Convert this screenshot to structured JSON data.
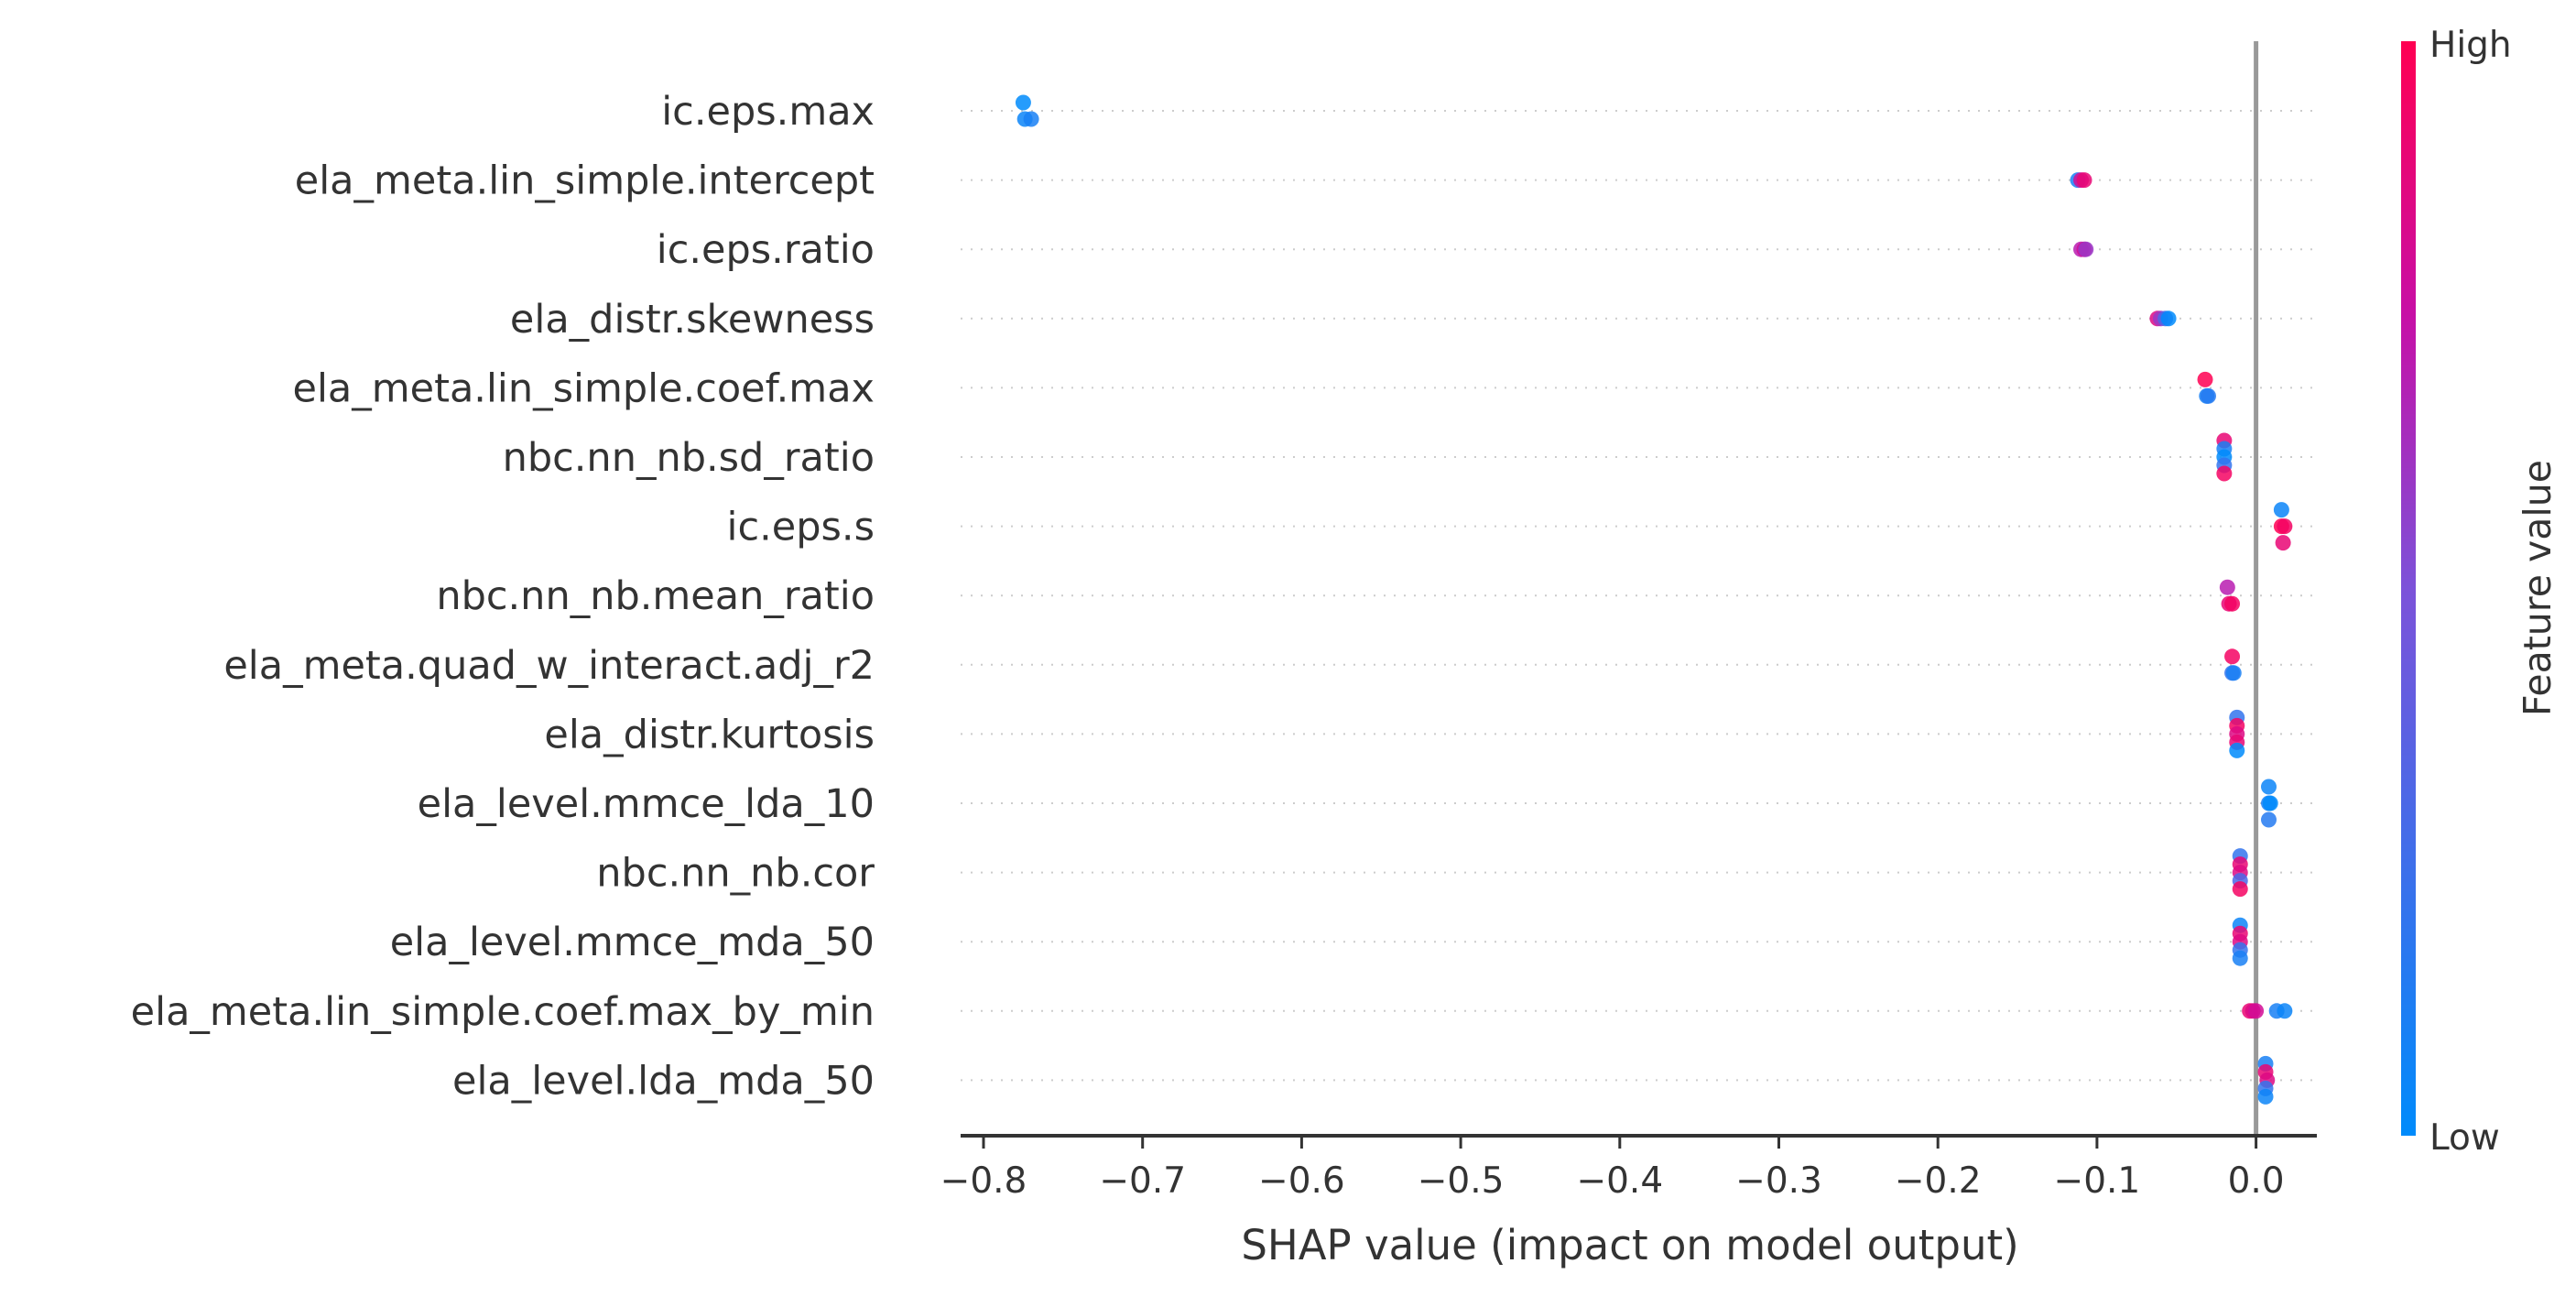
{
  "chart_data": {
    "type": "scatter",
    "subtype": "shap-beeswarm",
    "title": "",
    "xlabel": "SHAP value (impact on model output)",
    "ylabel": "",
    "xlim": [
      -0.82,
      0.06
    ],
    "xticks": [
      -0.8,
      -0.7,
      -0.6,
      -0.5,
      -0.4,
      -0.3,
      -0.2,
      -0.1,
      0.0
    ],
    "xtick_labels": [
      "−0.8",
      "−0.7",
      "−0.6",
      "−0.5",
      "−0.4",
      "−0.3",
      "−0.2",
      "−0.1",
      "0.0"
    ],
    "zero_line": 0.0,
    "grid": "dotted horizontal per feature row",
    "colorbar": {
      "title": "Feature value",
      "high_label": "High",
      "low_label": "Low",
      "high_color": "#ff0052",
      "low_color": "#008bfb",
      "placement": "right"
    },
    "features": [
      {
        "name": "ic.eps.max",
        "points": [
          {
            "x": -0.775,
            "v": 0.0,
            "dy": -1
          },
          {
            "x": -0.774,
            "v": 0.05,
            "dy": 1
          },
          {
            "x": -0.77,
            "v": 0.1,
            "dy": 1
          }
        ]
      },
      {
        "name": "ela_meta.lin_simple.intercept",
        "points": [
          {
            "x": -0.112,
            "v": 0.1,
            "dy": 0
          },
          {
            "x": -0.11,
            "v": 0.8,
            "dy": 0
          },
          {
            "x": -0.108,
            "v": 0.9,
            "dy": 0
          }
        ]
      },
      {
        "name": "ic.eps.ratio",
        "points": [
          {
            "x": -0.11,
            "v": 0.7,
            "dy": 0
          },
          {
            "x": -0.108,
            "v": 0.8,
            "dy": 0
          },
          {
            "x": -0.107,
            "v": 0.6,
            "dy": 0
          }
        ]
      },
      {
        "name": "ela_distr.skewness",
        "points": [
          {
            "x": -0.062,
            "v": 0.85,
            "dy": 0
          },
          {
            "x": -0.06,
            "v": 0.6,
            "dy": 0
          },
          {
            "x": -0.057,
            "v": 0.3,
            "dy": 0
          },
          {
            "x": -0.055,
            "v": 0.0,
            "dy": 0
          }
        ]
      },
      {
        "name": "ela_meta.lin_simple.coef.max",
        "points": [
          {
            "x": -0.032,
            "v": 1.0,
            "dy": -1
          },
          {
            "x": -0.031,
            "v": 0.1,
            "dy": 1
          },
          {
            "x": -0.03,
            "v": 0.15,
            "dy": 1
          }
        ]
      },
      {
        "name": "nbc.nn_nb.sd_ratio",
        "points": [
          {
            "x": -0.02,
            "v": 0.9,
            "dy": -2
          },
          {
            "x": -0.02,
            "v": 0.1,
            "dy": -1
          },
          {
            "x": -0.02,
            "v": 0.0,
            "dy": 0
          },
          {
            "x": -0.02,
            "v": 0.2,
            "dy": 1
          },
          {
            "x": -0.02,
            "v": 0.95,
            "dy": 2
          }
        ]
      },
      {
        "name": "ic.eps.s",
        "points": [
          {
            "x": 0.016,
            "v": 0.05,
            "dy": -2
          },
          {
            "x": 0.016,
            "v": 1.0,
            "dy": 0
          },
          {
            "x": 0.018,
            "v": 0.95,
            "dy": 0
          },
          {
            "x": 0.017,
            "v": 0.9,
            "dy": 2
          }
        ]
      },
      {
        "name": "nbc.nn_nb.mean_ratio",
        "points": [
          {
            "x": -0.018,
            "v": 0.7,
            "dy": -1
          },
          {
            "x": -0.017,
            "v": 0.9,
            "dy": 1
          },
          {
            "x": -0.015,
            "v": 0.95,
            "dy": 1
          }
        ]
      },
      {
        "name": "ela_meta.quad_w_interact.adj_r2",
        "points": [
          {
            "x": -0.015,
            "v": 0.95,
            "dy": -1
          },
          {
            "x": -0.015,
            "v": 0.2,
            "dy": 1
          },
          {
            "x": -0.014,
            "v": 0.1,
            "dy": 1
          }
        ]
      },
      {
        "name": "ela_distr.kurtosis",
        "points": [
          {
            "x": -0.012,
            "v": 0.2,
            "dy": -2
          },
          {
            "x": -0.012,
            "v": 0.95,
            "dy": -1
          },
          {
            "x": -0.012,
            "v": 0.85,
            "dy": 0
          },
          {
            "x": -0.012,
            "v": 0.9,
            "dy": 1
          },
          {
            "x": -0.012,
            "v": 0.0,
            "dy": 2
          }
        ]
      },
      {
        "name": "ela_level.mmce_lda_10",
        "points": [
          {
            "x": 0.008,
            "v": 0.05,
            "dy": -2
          },
          {
            "x": 0.008,
            "v": 0.1,
            "dy": 0
          },
          {
            "x": 0.009,
            "v": 0.0,
            "dy": 0
          },
          {
            "x": 0.008,
            "v": 0.15,
            "dy": 2
          }
        ]
      },
      {
        "name": "nbc.nn_nb.cor",
        "points": [
          {
            "x": -0.01,
            "v": 0.2,
            "dy": -2
          },
          {
            "x": -0.01,
            "v": 0.9,
            "dy": -1
          },
          {
            "x": -0.01,
            "v": 0.85,
            "dy": 0
          },
          {
            "x": -0.01,
            "v": 0.3,
            "dy": 1
          },
          {
            "x": -0.01,
            "v": 0.95,
            "dy": 2
          }
        ]
      },
      {
        "name": "ela_level.mmce_mda_50",
        "points": [
          {
            "x": -0.01,
            "v": 0.05,
            "dy": -2
          },
          {
            "x": -0.01,
            "v": 0.9,
            "dy": -1
          },
          {
            "x": -0.01,
            "v": 0.85,
            "dy": 0
          },
          {
            "x": -0.01,
            "v": 0.2,
            "dy": 1
          },
          {
            "x": -0.01,
            "v": 0.1,
            "dy": 2
          }
        ]
      },
      {
        "name": "ela_meta.lin_simple.coef.max_by_min",
        "points": [
          {
            "x": -0.004,
            "v": 0.9,
            "dy": 0
          },
          {
            "x": -0.002,
            "v": 0.85,
            "dy": 0
          },
          {
            "x": 0.0,
            "v": 0.8,
            "dy": 0
          },
          {
            "x": 0.013,
            "v": 0.1,
            "dy": 0
          },
          {
            "x": 0.018,
            "v": 0.05,
            "dy": 0
          }
        ]
      },
      {
        "name": "ela_level.lda_mda_50",
        "points": [
          {
            "x": 0.006,
            "v": 0.1,
            "dy": -2
          },
          {
            "x": 0.006,
            "v": 0.9,
            "dy": -1
          },
          {
            "x": 0.007,
            "v": 0.85,
            "dy": 0
          },
          {
            "x": 0.006,
            "v": 0.2,
            "dy": 1
          },
          {
            "x": 0.006,
            "v": 0.05,
            "dy": 2
          }
        ]
      }
    ]
  }
}
